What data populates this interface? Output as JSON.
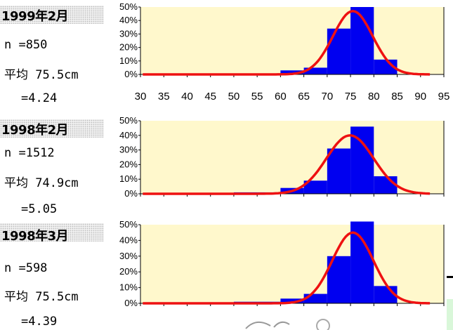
{
  "colors": {
    "plot_bg": "#fff8cc",
    "bar": "#0000f0",
    "curve": "#ee1111",
    "label_bg": "#f0f0f0"
  },
  "panels": [
    {
      "date": "1999年2月",
      "n_label": "n =850",
      "mean_label": "平均 75.5cm",
      "sd_label": "=4.24"
    },
    {
      "date": "1998年2月",
      "n_label": "n =1512",
      "mean_label": "平均 74.9cm",
      "sd_label": "=5.05"
    },
    {
      "date": "1998年3月",
      "n_label": "n =598",
      "mean_label": "平均 75.5cm",
      "sd_label": "=4.39"
    }
  ],
  "chart_data": [
    {
      "type": "bar",
      "x_ticks": [
        30,
        35,
        40,
        45,
        50,
        55,
        60,
        65,
        70,
        75,
        80,
        85,
        90,
        95
      ],
      "bin_width": 5,
      "bins_start": [
        55,
        60,
        65,
        70,
        75,
        80
      ],
      "values": [
        0.5,
        3,
        5,
        34,
        50,
        11
      ],
      "y_ticks": [
        "0%",
        "10%",
        "20%",
        "30%",
        "40%",
        "50%"
      ],
      "ylim": [
        0,
        50
      ],
      "xlim": [
        30,
        95
      ],
      "curve": {
        "mean": 75.5,
        "sd": 4.24,
        "peak": 47
      }
    },
    {
      "type": "bar",
      "bin_width": 5,
      "bins_start": [
        50,
        55,
        60,
        65,
        70,
        75,
        80
      ],
      "values": [
        1,
        1,
        4,
        9,
        31,
        46,
        12
      ],
      "y_ticks": [
        "0%",
        "10%",
        "20%",
        "30%",
        "40%",
        "50%"
      ],
      "ylim": [
        0,
        50
      ],
      "xlim": [
        30,
        95
      ],
      "curve": {
        "mean": 74.9,
        "sd": 5.05,
        "peak": 40
      }
    },
    {
      "type": "bar",
      "bin_width": 5,
      "bins_start": [
        50,
        55,
        60,
        65,
        70,
        75,
        80
      ],
      "values": [
        1,
        1,
        3,
        6,
        30,
        52,
        11
      ],
      "y_ticks": [
        "0%",
        "10%",
        "20%",
        "30%",
        "40%",
        "50%"
      ],
      "ylim": [
        0,
        50
      ],
      "xlim": [
        30,
        95
      ],
      "curve": {
        "mean": 75.5,
        "sd": 4.39,
        "peak": 45
      }
    }
  ]
}
